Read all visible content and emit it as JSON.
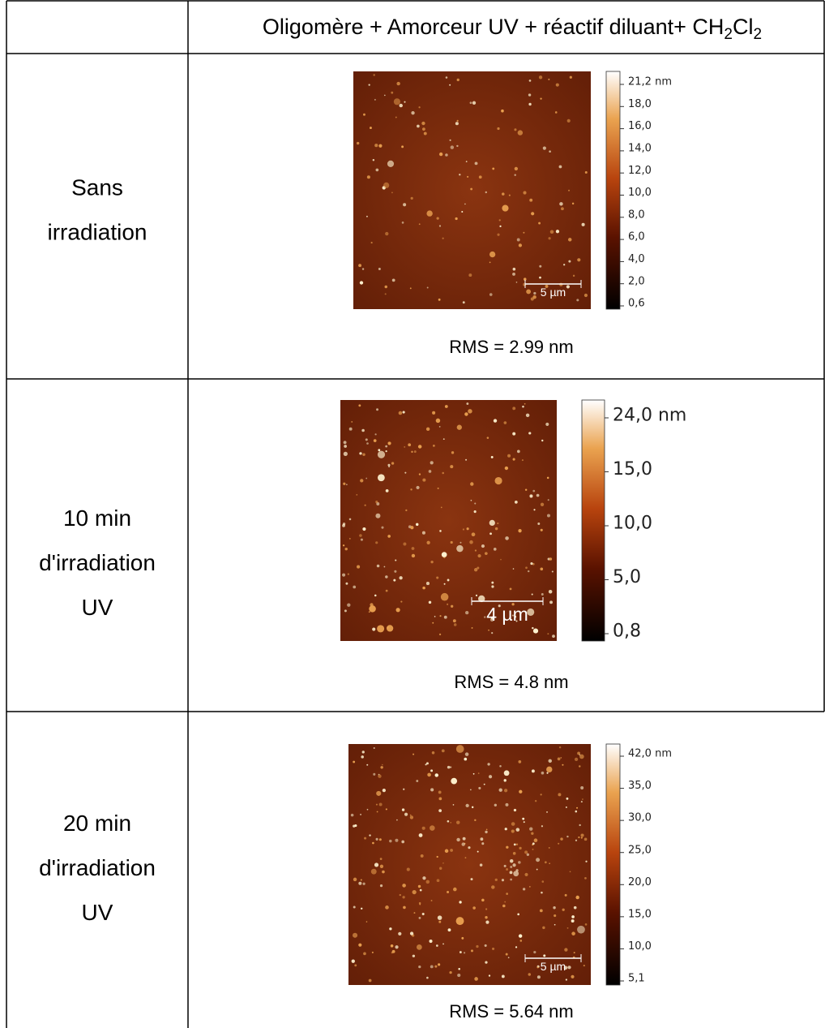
{
  "header": {
    "corner": "",
    "title": [
      {
        "text": "Oligomère + Amorceur UV + réactif diluant+ CH"
      },
      {
        "text": "2",
        "sub": true
      },
      {
        "text": "Cl"
      },
      {
        "text": "2",
        "sub": true
      }
    ]
  },
  "rows": [
    {
      "label": [
        "Sans",
        "irradiation"
      ],
      "scale_labels": [
        "21,2 nm",
        "18,0",
        "16,0",
        "14,0",
        "12,0",
        "10,0",
        "8,0",
        "6,0",
        "4,0",
        "2,0",
        "0,6"
      ],
      "scale_bar": "5 µm",
      "rms": "RMS = 2.99 nm"
    },
    {
      "label": [
        "10 min",
        "d'irradiation",
        "UV"
      ],
      "scale_labels": [
        "24,0 nm",
        "15,0",
        "10,0",
        "5,0",
        "0,8"
      ],
      "scale_bar": "4 µm",
      "rms": "RMS = 4.8 nm"
    },
    {
      "label": [
        "20 min",
        "d'irradiation",
        "UV"
      ],
      "scale_labels": [
        "42,0 nm",
        "35,0",
        "30,0",
        "25,0",
        "20,0",
        "15,0",
        "10,0",
        "5,1"
      ],
      "scale_bar": "5 µm",
      "rms": "RMS = 5.64 nm"
    }
  ]
}
